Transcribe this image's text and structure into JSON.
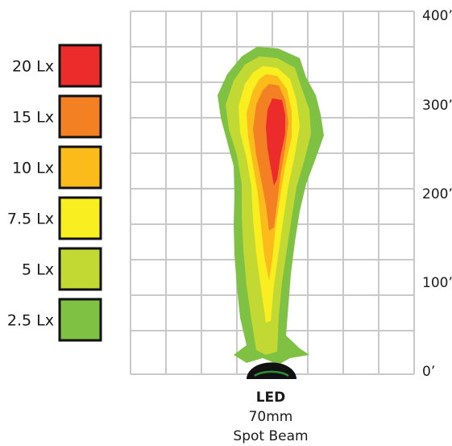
{
  "legend": [
    {
      "label": "20 Lx",
      "color": "#ec2b2b"
    },
    {
      "label": "15 Lx",
      "color": "#f48024"
    },
    {
      "label": "10 Lx",
      "color": "#fbbb1b"
    },
    {
      "label": "7.5 Lx",
      "color": "#f9ee1f"
    },
    {
      "label": "5 Lx",
      "color": "#c3d933"
    },
    {
      "label": "2.5 Lx",
      "color": "#7ec143"
    }
  ],
  "axis": {
    "ticks": [
      "400’",
      "300’",
      "200’",
      "100’",
      "0’"
    ]
  },
  "caption": {
    "type": "LED",
    "size": "70mm",
    "beam": "Spot Beam"
  },
  "colors": {
    "grid": "#c9c9c9",
    "border": "#111111",
    "lamp": "#111111",
    "lamp_glow": "#2e8b3a"
  }
}
